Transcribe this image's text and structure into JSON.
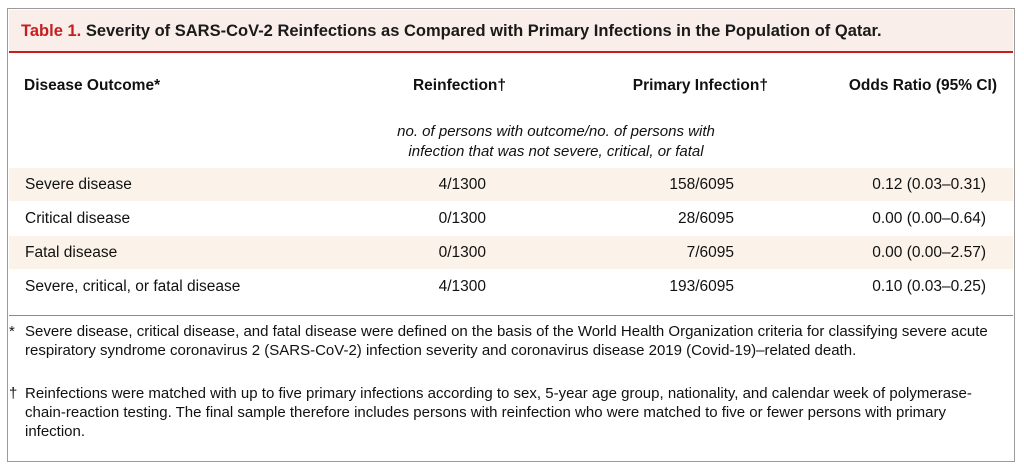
{
  "table": {
    "label": "Table 1.",
    "title": "Severity of SARS-CoV-2 Reinfections as Compared with Primary Infections in the Population of Qatar.",
    "columns": {
      "outcome": "Disease Outcome*",
      "reinfection": "Reinfection†",
      "primary": "Primary Infection†",
      "odds": "Odds Ratio (95% CI)"
    },
    "subheading_line1": "no. of persons with outcome/no. of persons with",
    "subheading_line2": "infection that was not severe, critical, or fatal",
    "rows": [
      {
        "outcome": "Severe disease",
        "reinfection": "4/1300",
        "primary": "158/6095",
        "odds": "0.12 (0.03–0.31)"
      },
      {
        "outcome": "Critical disease",
        "reinfection": "0/1300",
        "primary": "28/6095",
        "odds": "0.00 (0.00–0.64)"
      },
      {
        "outcome": "Fatal disease",
        "reinfection": "0/1300",
        "primary": "7/6095",
        "odds": "0.00 (0.00–2.57)"
      },
      {
        "outcome": "Severe, critical, or fatal disease",
        "reinfection": "4/1300",
        "primary": "193/6095",
        "odds": "0.10 (0.03–0.25)"
      }
    ]
  },
  "footnotes": [
    {
      "mark": "*",
      "text": "Severe disease, critical disease, and fatal disease were defined on the basis of the World Health Organization criteria for classifying severe acute respiratory syndrome coronavirus 2 (SARS-CoV-2) infection severity and coronavirus disease 2019 (Covid-19)–related death."
    },
    {
      "mark": "†",
      "text": "Reinfections were matched with up to five primary infections according to sex, 5-year age group, nationality, and calendar week of polymerase-chain-reaction testing. The final sample therefore includes persons with reinfection who were matched to five or fewer persons with primary infection."
    }
  ],
  "colors": {
    "accent_red": "#c61e1e",
    "title_background": "#f9eeea",
    "row_shading": "#fbf3e9"
  }
}
